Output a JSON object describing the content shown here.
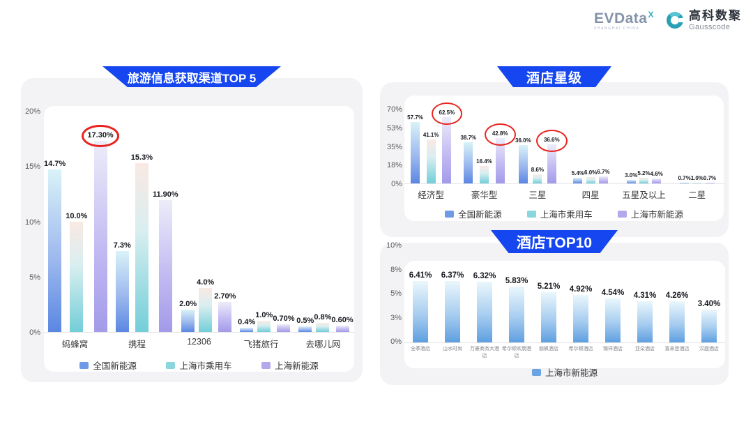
{
  "header": {
    "evdata": {
      "wordmark": "EVData",
      "superscript": "X",
      "subtext": "SHANGHAI CHINA"
    },
    "gausscode": {
      "name_cn": "高科数聚",
      "name_en": "Gausscode"
    }
  },
  "colors": {
    "banner_blue": "#1546ef",
    "annotation_red": "#e8231d",
    "series_national": "#5b87e2",
    "series_passenger": "#72ced8",
    "series_shanghai_ev": "#a39ae9",
    "top10_bar": "#5e9fe0"
  },
  "chart_data": [
    {
      "type": "bar",
      "title": "旅游信息获取渠道TOP 5",
      "categories": [
        "蚂蜂窝",
        "携程",
        "12306",
        "飞猪旅行",
        "去哪儿网"
      ],
      "series": [
        {
          "name": "全国新能源",
          "values": [
            14.7,
            7.3,
            2.0,
            0.4,
            0.5
          ],
          "labels": [
            "14.7%",
            "7.3%",
            "2.0%",
            "0.4%",
            "0.5%"
          ]
        },
        {
          "name": "上海市乘用车",
          "values": [
            10.0,
            15.3,
            4.0,
            1.0,
            0.8
          ],
          "labels": [
            "10.0%",
            "15.3%",
            "4.0%",
            "1.0%",
            "0.8%"
          ]
        },
        {
          "name": "上海新能源",
          "values": [
            17.3,
            11.9,
            2.7,
            0.7,
            0.6
          ],
          "labels": [
            "17.30%",
            "11.90%",
            "2.70%",
            "0.70%",
            "0.60%"
          ]
        }
      ],
      "ylim": [
        0,
        20
      ],
      "yticks": [
        "20%",
        "15%",
        "10%",
        "5%",
        "0%"
      ],
      "grid": false,
      "legend_position": "bottom",
      "annotations": [
        {
          "series": 2,
          "category": 0,
          "shape": "red-ellipse"
        }
      ]
    },
    {
      "type": "bar",
      "title": "酒店星级",
      "categories": [
        "经济型",
        "豪华型",
        "三星",
        "四星",
        "五星及以上",
        "二星"
      ],
      "series": [
        {
          "name": "全国新能源",
          "values": [
            57.7,
            38.7,
            36.0,
            5.4,
            3.0,
            0.7
          ],
          "labels": [
            "57.7%",
            "38.7%",
            "36.0%",
            "5.4%",
            "3.0%",
            "0.7%"
          ]
        },
        {
          "name": "上海市乘用车",
          "values": [
            41.1,
            16.4,
            8.6,
            6.0,
            5.2,
            1.0
          ],
          "labels": [
            "41.1%",
            "16.4%",
            "8.6%",
            "6.0%",
            "5.2%",
            "1.0%"
          ]
        },
        {
          "name": "上海市新能源",
          "values": [
            62.5,
            42.8,
            36.6,
            6.7,
            4.6,
            0.7
          ],
          "labels": [
            "62.5%",
            "42.8%",
            "36.6%",
            "6.7%",
            "4.6%",
            "0.7%"
          ]
        }
      ],
      "ylim": [
        0,
        70
      ],
      "yticks": [
        "70%",
        "53%",
        "35%",
        "18%",
        "0%"
      ],
      "grid": false,
      "legend_position": "bottom",
      "annotations": [
        {
          "series": 2,
          "category": 0,
          "shape": "red-ellipse"
        },
        {
          "series": 2,
          "category": 1,
          "shape": "red-ellipse"
        },
        {
          "series": 2,
          "category": 2,
          "shape": "red-ellipse"
        }
      ]
    },
    {
      "type": "bar",
      "title": "酒店TOP10",
      "categories": [
        "全季酒店",
        "山水时尚",
        "万豪商务大酒店",
        "希尔顿欢朋酒店",
        "丽枫酒店",
        "希尔顿酒店",
        "锦祥酒店",
        "亚朵酒店",
        "喜来登酒店",
        "汉庭酒店"
      ],
      "series": [
        {
          "name": "上海市新能源",
          "values": [
            6.41,
            6.37,
            6.32,
            5.83,
            5.21,
            4.92,
            4.54,
            4.31,
            4.26,
            3.4
          ],
          "labels": [
            "6.41%",
            "6.37%",
            "6.32%",
            "5.83%",
            "5.21%",
            "4.92%",
            "4.54%",
            "4.31%",
            "4.26%",
            "3.40%"
          ]
        }
      ],
      "ylim": [
        0,
        10
      ],
      "yticks": [
        "10%",
        "8%",
        "5%",
        "3%",
        "0%"
      ],
      "grid": false,
      "legend_position": "bottom",
      "annotations": []
    }
  ]
}
